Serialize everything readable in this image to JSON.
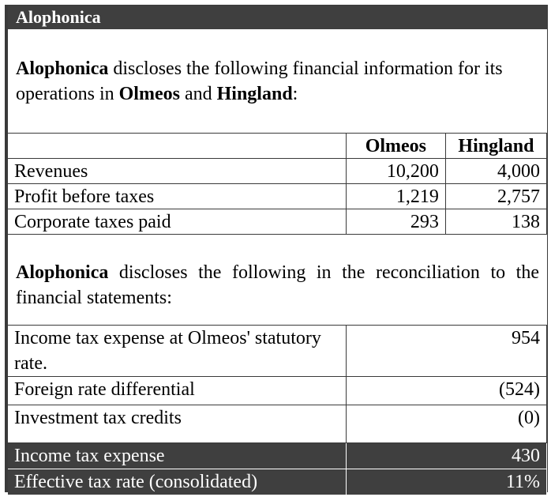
{
  "title": "Alophonica",
  "intro": {
    "company": "Alophonica",
    "text1": " discloses the following financial information for its operations in ",
    "country1": "Olmeos",
    "and": " and ",
    "country2": "Hingland",
    "end": ":"
  },
  "ops_table": {
    "headers": [
      "",
      "Olmeos",
      "Hingland"
    ],
    "rows": [
      {
        "label": "Revenues",
        "olmeos": "10,200",
        "hingland": "4,000"
      },
      {
        "label": "Profit before taxes",
        "olmeos": "1,219",
        "hingland": "2,757"
      },
      {
        "label": "Corporate taxes paid",
        "olmeos": "293",
        "hingland": "138"
      }
    ]
  },
  "recon_intro": {
    "company": "Alophonica",
    "text": " discloses the following in the reconciliation to the financial statements:"
  },
  "recon_table": {
    "rows": [
      {
        "label": "Income tax expense at Olmeos' statutory rate.",
        "value": "954"
      },
      {
        "label": "Foreign rate differential",
        "value": "(524)"
      },
      {
        "label": "Investment tax credits",
        "value": "(0)"
      }
    ],
    "totals": [
      {
        "label": "Income tax expense",
        "value": "430"
      },
      {
        "label": "Effective tax rate (consolidated)",
        "value": "11%"
      }
    ]
  }
}
